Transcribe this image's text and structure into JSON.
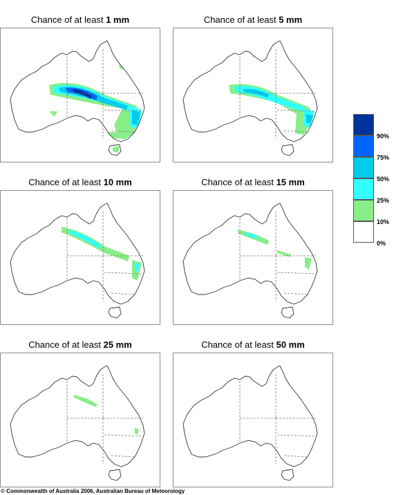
{
  "panels": [
    {
      "prefix": "Chance of at least ",
      "amount": "1 mm",
      "level": 1
    },
    {
      "prefix": "Chance of at least ",
      "amount": "5 mm",
      "level": 2
    },
    {
      "prefix": "Chance of at least ",
      "amount": "10 mm",
      "level": 3
    },
    {
      "prefix": "Chance of at least ",
      "amount": "15 mm",
      "level": 4
    },
    {
      "prefix": "Chance of at least ",
      "amount": "25 mm",
      "level": 5
    },
    {
      "prefix": "Chance of at least ",
      "amount": "50 mm",
      "level": 6
    }
  ],
  "legend": {
    "labels": [
      "90%",
      "75%",
      "50%",
      "25%",
      "10%",
      "0%"
    ],
    "colors": [
      "#003399",
      "#0066ff",
      "#00ccee",
      "#33ffff",
      "#88ee88",
      "#ffffff"
    ]
  },
  "copyright": "© Commonwealth of Australia 2006, Australian Bureau of Meteorology",
  "colors": {
    "band_10": "#88ee88",
    "band_25": "#33ffff",
    "band_50": "#00ccee",
    "band_75": "#0066ff",
    "band_90": "#003399",
    "coast": "#333333",
    "border": "#777777"
  }
}
